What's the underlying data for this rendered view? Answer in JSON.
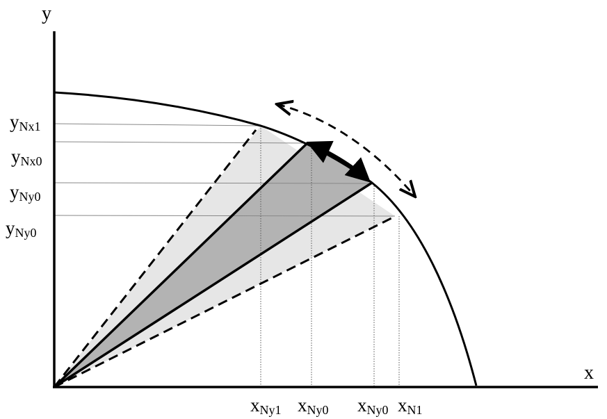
{
  "diagram": {
    "axes": {
      "x_label": "x",
      "y_label": "y"
    },
    "y_labels": [
      {
        "main": "y",
        "sub": "Nx1"
      },
      {
        "main": "y",
        "sub": "Nx0"
      },
      {
        "main": "y",
        "sub": "Ny0"
      },
      {
        "main": "y",
        "sub": "Ny0"
      }
    ],
    "x_labels": [
      {
        "main": "x",
        "sub": "Ny1"
      },
      {
        "main": "x",
        "sub": "Ny0"
      },
      {
        "main": "x",
        "sub": "Ny0"
      },
      {
        "main": "x",
        "sub": "N1"
      }
    ],
    "colors": {
      "outer_fill": "#e6e6e6",
      "inner_fill": "#b3b3b3",
      "stroke": "#000000",
      "guide": "#888888"
    }
  }
}
